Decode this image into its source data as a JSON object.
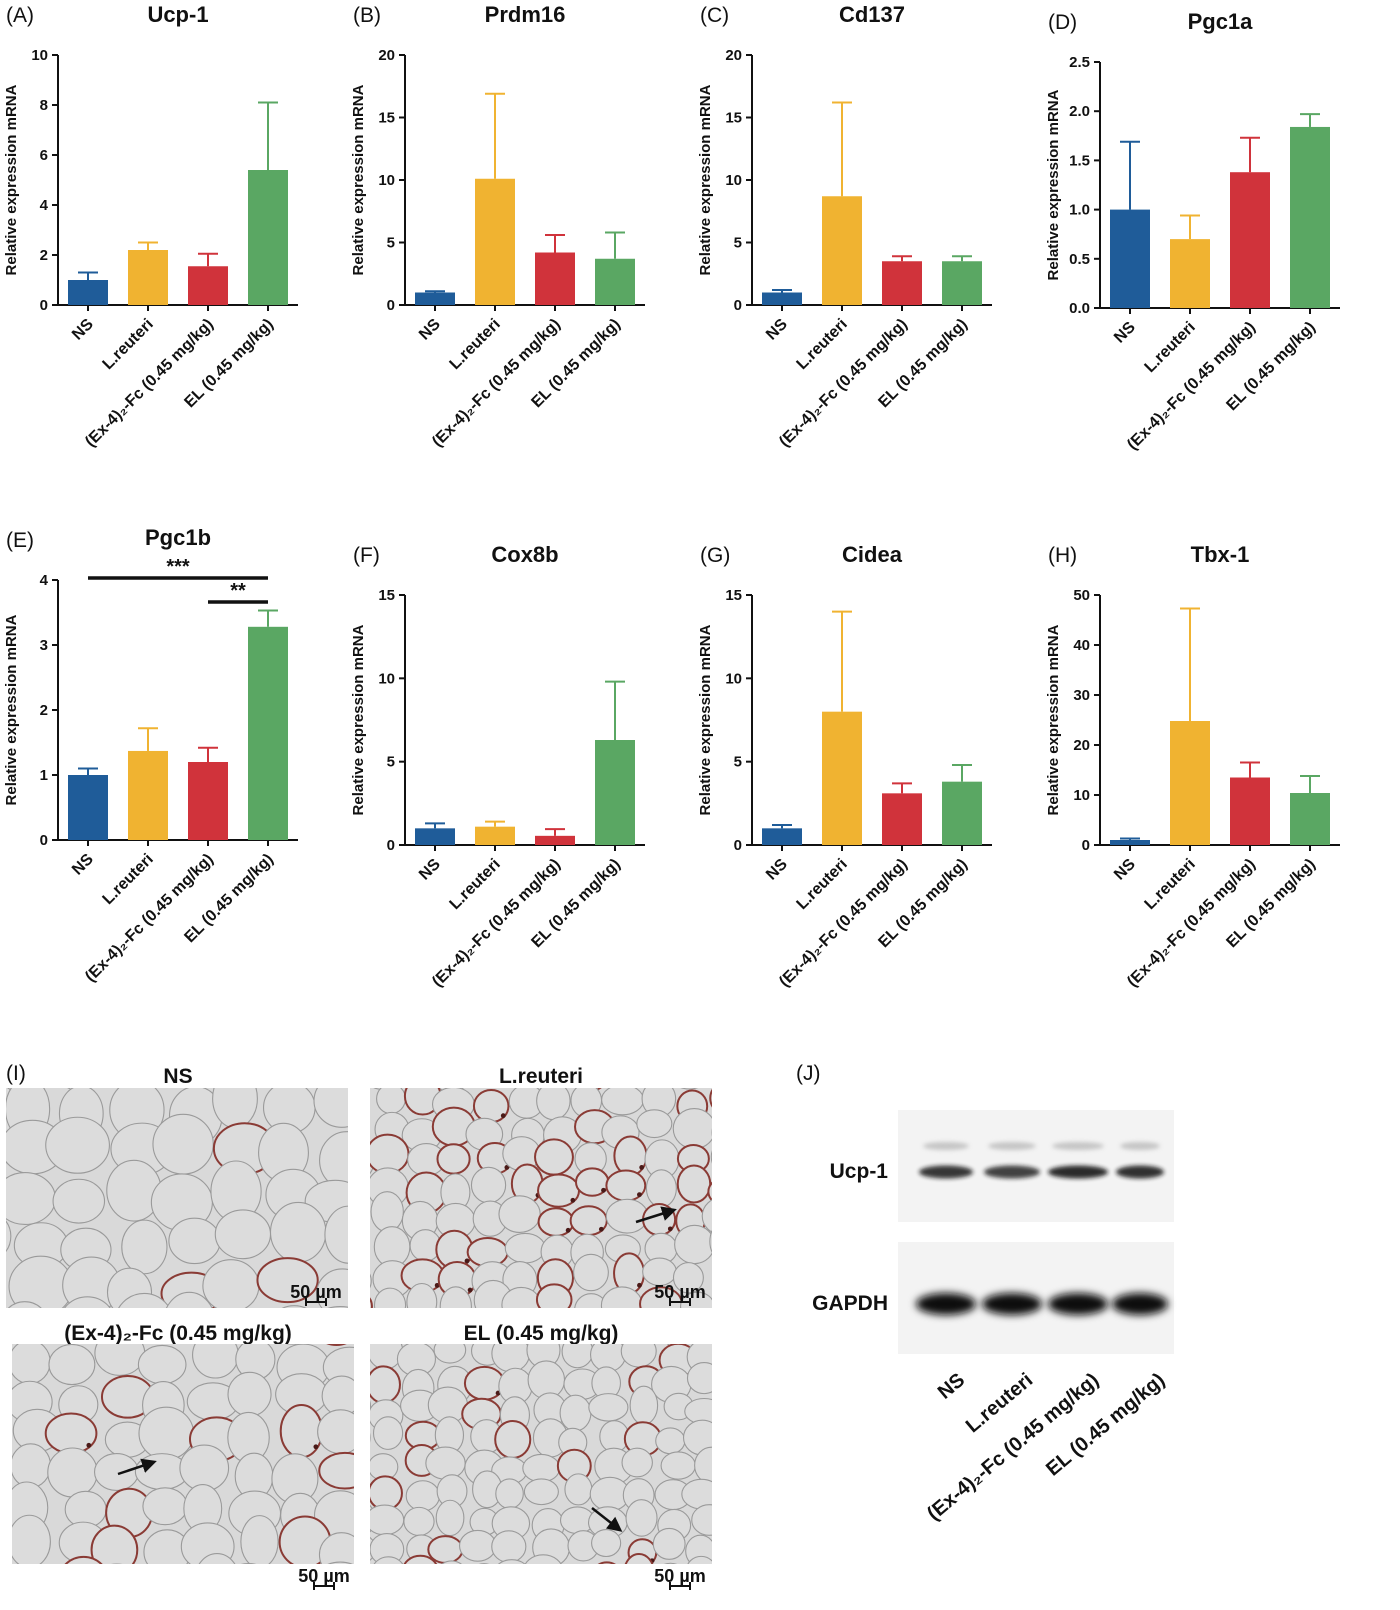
{
  "colors": {
    "NS": "#1f5c99",
    "L.reuteri": "#f0b331",
    "Ex4Fc": "#d0333b",
    "EL": "#5aa763"
  },
  "groups": [
    "NS",
    "L.reuteri",
    "(Ex-4)₂-Fc (0.45 mg/kg)",
    "EL (0.45 mg/kg)"
  ],
  "chart_data": [
    {
      "id": "A",
      "type": "bar",
      "title": "Ucp-1",
      "ylabel": "Relative expression mRNA",
      "ylim": [
        0,
        10
      ],
      "yticks": [
        "0",
        "2",
        "4",
        "6",
        "8",
        "10"
      ],
      "categories": [
        "NS",
        "L.reuteri",
        "(Ex-4)₂-Fc (0.45 mg/kg)",
        "EL (0.45 mg/kg)"
      ],
      "values": [
        1.0,
        2.2,
        1.55,
        5.4
      ],
      "errors": [
        0.3,
        0.3,
        0.5,
        2.7
      ]
    },
    {
      "id": "B",
      "type": "bar",
      "title": "Prdm16",
      "ylabel": "Relative expression mRNA",
      "ylim": [
        0,
        20
      ],
      "yticks": [
        "0",
        "5",
        "10",
        "15",
        "20"
      ],
      "categories": [
        "NS",
        "L.reuteri",
        "(Ex-4)₂-Fc (0.45 mg/kg)",
        "EL (0.45 mg/kg)"
      ],
      "values": [
        1.0,
        10.1,
        4.2,
        3.7
      ],
      "errors": [
        0.1,
        6.8,
        1.4,
        2.1
      ]
    },
    {
      "id": "C",
      "type": "bar",
      "title": "Cd137",
      "ylabel": "Relative expression mRNA",
      "ylim": [
        0,
        20
      ],
      "yticks": [
        "0",
        "5",
        "10",
        "15",
        "20"
      ],
      "categories": [
        "NS",
        "L.reuteri",
        "(Ex-4)₂-Fc (0.45 mg/kg)",
        "EL (0.45 mg/kg)"
      ],
      "values": [
        1.0,
        8.7,
        3.5,
        3.5
      ],
      "errors": [
        0.2,
        7.5,
        0.4,
        0.4
      ]
    },
    {
      "id": "D",
      "type": "bar",
      "title": "Pgc1a",
      "ylabel": "Relative expression mRNA",
      "ylim": [
        0,
        2.5
      ],
      "yticks": [
        "0.0",
        "0.5",
        "1.0",
        "1.5",
        "2.0",
        "2.5"
      ],
      "categories": [
        "NS",
        "L.reuteri",
        "(Ex-4)₂-Fc (0.45 mg/kg)",
        "EL (0.45 mg/kg)"
      ],
      "values": [
        1.0,
        0.7,
        1.38,
        1.84
      ],
      "errors": [
        0.69,
        0.24,
        0.35,
        0.13
      ]
    },
    {
      "id": "E",
      "type": "bar",
      "title": "Pgc1b",
      "ylabel": "Relative expression mRNA",
      "ylim": [
        0,
        4
      ],
      "yticks": [
        "0",
        "1",
        "2",
        "3",
        "4"
      ],
      "categories": [
        "NS",
        "L.reuteri",
        "(Ex-4)₂-Fc (0.45 mg/kg)",
        "EL (0.45 mg/kg)"
      ],
      "values": [
        1.0,
        1.37,
        1.2,
        3.28
      ],
      "errors": [
        0.1,
        0.35,
        0.22,
        0.25
      ],
      "significance": [
        {
          "from": 0,
          "to": 3,
          "label": "***"
        },
        {
          "from": 2,
          "to": 3,
          "label": "**"
        }
      ]
    },
    {
      "id": "F",
      "type": "bar",
      "title": "Cox8b",
      "ylabel": "Relative expression mRNA",
      "ylim": [
        0,
        15
      ],
      "yticks": [
        "0",
        "5",
        "10",
        "15"
      ],
      "categories": [
        "NS",
        "L.reuteri",
        "(Ex-4)₂-Fc (0.45 mg/kg)",
        "EL (0.45 mg/kg)"
      ],
      "values": [
        1.0,
        1.1,
        0.55,
        6.3
      ],
      "errors": [
        0.3,
        0.3,
        0.4,
        3.5
      ]
    },
    {
      "id": "G",
      "type": "bar",
      "title": "Cidea",
      "ylabel": "Relative expression mRNA",
      "ylim": [
        0,
        15
      ],
      "yticks": [
        "0",
        "5",
        "10",
        "15"
      ],
      "categories": [
        "NS",
        "L.reuteri",
        "(Ex-4)₂-Fc (0.45 mg/kg)",
        "EL (0.45 mg/kg)"
      ],
      "values": [
        1.0,
        8.0,
        3.1,
        3.8
      ],
      "errors": [
        0.2,
        6.0,
        0.6,
        1.0
      ]
    },
    {
      "id": "H",
      "type": "bar",
      "title": "Tbx-1",
      "ylabel": "Relative expression mRNA",
      "ylim": [
        0,
        50
      ],
      "yticks": [
        "0",
        "10",
        "20",
        "30",
        "40",
        "50"
      ],
      "categories": [
        "NS",
        "L.reuteri",
        "(Ex-4)₂-Fc (0.45 mg/kg)",
        "EL (0.45 mg/kg)"
      ],
      "values": [
        1.0,
        24.8,
        13.5,
        10.4
      ],
      "errors": [
        0.3,
        22.5,
        3.0,
        3.4
      ]
    }
  ],
  "micrographs": {
    "letter": "(I)",
    "scale_label": "50 µm",
    "panels": [
      {
        "title": "NS"
      },
      {
        "title": "L.reuteri"
      },
      {
        "title": "(Ex-4)₂-Fc (0.45 mg/kg)"
      },
      {
        "title": "EL (0.45 mg/kg)"
      }
    ]
  },
  "blot": {
    "letter": "(J)",
    "rows": [
      "Ucp-1",
      "GAPDH"
    ],
    "lanes": [
      "NS",
      "L.reuteri",
      "(Ex-4)₂-Fc (0.45 mg/kg)",
      "EL (0.45 mg/kg)"
    ]
  }
}
